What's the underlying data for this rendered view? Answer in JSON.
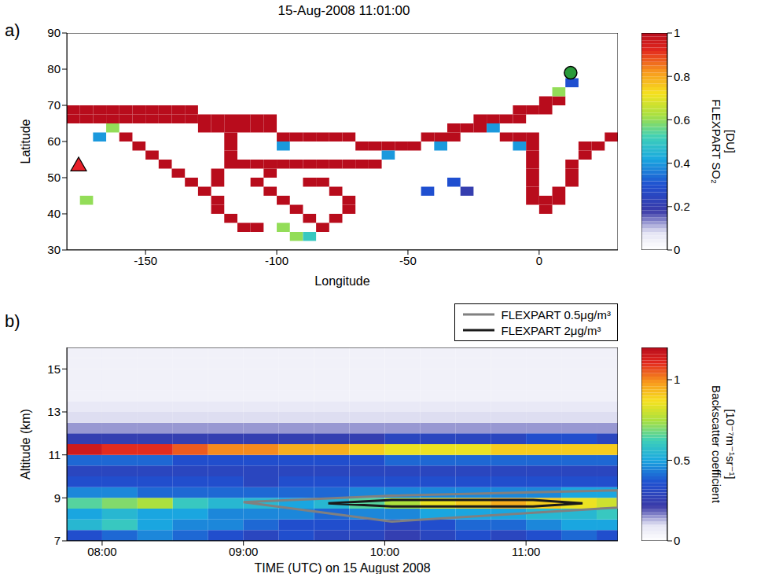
{
  "chart_data": [
    {
      "type": "heatmap",
      "title": "15-Aug-2008 11:01:00",
      "panel_label": "a)",
      "xlabel": "Longitude",
      "ylabel": "Latitude",
      "xlim": [
        -180,
        30
      ],
      "xticks": [
        -150,
        -100,
        -50,
        0
      ],
      "ylim": [
        30,
        90
      ],
      "yticks": [
        30,
        40,
        50,
        60,
        70,
        80,
        90
      ],
      "colorbar": {
        "label": "FLEXPART SO₂ [DU]",
        "range": [
          0,
          1
        ],
        "ticks": [
          0,
          0.2,
          0.4,
          0.6,
          0.8,
          1
        ]
      },
      "cell_size": [
        5,
        2.5
      ],
      "cells": [
        [
          -180,
          65,
          1
        ],
        [
          -175,
          65,
          1
        ],
        [
          -170,
          65,
          1
        ],
        [
          -165,
          65,
          1
        ],
        [
          -160,
          65,
          1
        ],
        [
          -155,
          65,
          1
        ],
        [
          -150,
          65,
          1
        ],
        [
          -145,
          65,
          1
        ],
        [
          -140,
          65,
          1
        ],
        [
          -135,
          65,
          1
        ],
        [
          -180,
          67.5,
          1
        ],
        [
          -175,
          67.5,
          1
        ],
        [
          -170,
          67.5,
          1
        ],
        [
          -165,
          67.5,
          1
        ],
        [
          -160,
          67.5,
          1
        ],
        [
          -155,
          67.5,
          1
        ],
        [
          -150,
          67.5,
          1
        ],
        [
          -145,
          67.5,
          1
        ],
        [
          -140,
          67.5,
          1
        ],
        [
          -135,
          67.5,
          1
        ],
        [
          -130,
          62.5,
          1
        ],
        [
          -125,
          62.5,
          1
        ],
        [
          -120,
          62.5,
          1
        ],
        [
          -115,
          62.5,
          1
        ],
        [
          -110,
          62.5,
          1
        ],
        [
          -105,
          62.5,
          1
        ],
        [
          -130,
          65,
          1
        ],
        [
          -125,
          65,
          1
        ],
        [
          -120,
          65,
          1
        ],
        [
          -115,
          65,
          1
        ],
        [
          -110,
          65,
          1
        ],
        [
          -105,
          65,
          1
        ],
        [
          -100,
          60,
          1
        ],
        [
          -95,
          60,
          1
        ],
        [
          -90,
          60,
          1
        ],
        [
          -85,
          60,
          1
        ],
        [
          -80,
          60,
          1
        ],
        [
          -75,
          60,
          1
        ],
        [
          -70,
          57.5,
          1
        ],
        [
          -65,
          57.5,
          1
        ],
        [
          -60,
          57.5,
          1
        ],
        [
          -55,
          57.5,
          1
        ],
        [
          -50,
          57.5,
          1
        ],
        [
          -45,
          60,
          1
        ],
        [
          -40,
          60,
          1
        ],
        [
          -35,
          60,
          1
        ],
        [
          -35,
          62.5,
          1
        ],
        [
          -30,
          62.5,
          1
        ],
        [
          -25,
          62.5,
          1
        ],
        [
          -25,
          65,
          1
        ],
        [
          -20,
          65,
          1
        ],
        [
          -15,
          65,
          1
        ],
        [
          -10,
          65,
          1
        ],
        [
          -10,
          67.5,
          1
        ],
        [
          -5,
          67.5,
          1
        ],
        [
          0,
          67.5,
          1
        ],
        [
          0,
          70,
          1
        ],
        [
          5,
          70,
          1
        ],
        [
          5,
          72.5,
          0.6
        ],
        [
          10,
          75,
          0.3
        ],
        [
          -120,
          52.5,
          1
        ],
        [
          -115,
          52.5,
          1
        ],
        [
          -110,
          52.5,
          1
        ],
        [
          -105,
          52.5,
          1
        ],
        [
          -100,
          52.5,
          1
        ],
        [
          -95,
          52.5,
          1
        ],
        [
          -90,
          52.5,
          1
        ],
        [
          -85,
          52.5,
          1
        ],
        [
          -80,
          52.5,
          1
        ],
        [
          -75,
          52.5,
          1
        ],
        [
          -70,
          52.5,
          1
        ],
        [
          -65,
          52.5,
          1
        ],
        [
          -15,
          60,
          1
        ],
        [
          -10,
          60,
          1
        ],
        [
          -5,
          60,
          1
        ],
        [
          -5,
          57.5,
          1
        ],
        [
          -5,
          55,
          1
        ],
        [
          -5,
          52.5,
          1
        ],
        [
          -5,
          50,
          1
        ],
        [
          -5,
          47.5,
          1
        ],
        [
          -5,
          45,
          1
        ],
        [
          -5,
          42.5,
          1
        ],
        [
          0,
          40,
          1
        ],
        [
          0,
          42.5,
          1
        ],
        [
          5,
          42.5,
          1
        ],
        [
          5,
          45,
          1
        ],
        [
          10,
          47.5,
          1
        ],
        [
          10,
          50,
          1
        ],
        [
          10,
          52.5,
          1
        ],
        [
          15,
          55,
          1
        ],
        [
          15,
          57.5,
          1
        ],
        [
          20,
          57.5,
          1
        ],
        [
          25,
          60,
          1
        ],
        [
          -160,
          60,
          1
        ],
        [
          -155,
          57.5,
          1
        ],
        [
          -150,
          55,
          1
        ],
        [
          -145,
          52.5,
          1
        ],
        [
          -140,
          50,
          1
        ],
        [
          -135,
          47.5,
          1
        ],
        [
          -130,
          45,
          1
        ],
        [
          -125,
          42.5,
          1
        ],
        [
          -125,
          40,
          1
        ],
        [
          -120,
          37.5,
          1
        ],
        [
          -115,
          35,
          1
        ],
        [
          -110,
          35,
          1
        ],
        [
          -165,
          62.5,
          0.6
        ],
        [
          -170,
          60,
          0.4
        ],
        [
          -120,
          60,
          1
        ],
        [
          -120,
          57.5,
          1
        ],
        [
          -120,
          55,
          1
        ],
        [
          -125,
          50,
          1
        ],
        [
          -125,
          47.5,
          1
        ],
        [
          -105,
          45,
          1
        ],
        [
          -100,
          42.5,
          1
        ],
        [
          -95,
          40,
          1
        ],
        [
          -90,
          37.5,
          1
        ],
        [
          -85,
          35,
          1
        ],
        [
          -80,
          37.5,
          1
        ],
        [
          -75,
          40,
          1
        ],
        [
          -75,
          42.5,
          1
        ],
        [
          -80,
          45,
          1
        ],
        [
          -85,
          47.5,
          1
        ],
        [
          -90,
          47.5,
          1
        ],
        [
          -110,
          47.5,
          1
        ],
        [
          -105,
          50,
          1
        ],
        [
          -100,
          35,
          0.6
        ],
        [
          -95,
          32.5,
          0.6
        ],
        [
          -90,
          32.5,
          0.5
        ],
        [
          -100,
          57.5,
          0.4
        ],
        [
          -60,
          55,
          0.4
        ],
        [
          -40,
          57.5,
          0.4
        ],
        [
          -20,
          62.5,
          0.4
        ],
        [
          -35,
          47.5,
          0.3
        ],
        [
          -45,
          45,
          0.3
        ],
        [
          -30,
          45,
          0.2
        ],
        [
          -10,
          57.5,
          0.4
        ],
        [
          -175,
          42.5,
          0.6
        ]
      ],
      "markers": [
        {
          "x": -175.5,
          "y": 53.5,
          "marker": "triangle",
          "color": "#e8202a"
        },
        {
          "x": 12,
          "y": 79,
          "marker": "circle",
          "color": "#2a9a3a"
        }
      ]
    },
    {
      "type": "heatmap",
      "panel_label": "b)",
      "xlabel": "TIME (UTC) on 15 August 2008",
      "ylabel": "Altitude (km)",
      "xlim": [
        7.75,
        11.65
      ],
      "xticks": [
        {
          "value": 8,
          "label": "08:00"
        },
        {
          "value": 9,
          "label": "09:00"
        },
        {
          "value": 10,
          "label": "10:00"
        },
        {
          "value": 11,
          "label": "11:00"
        }
      ],
      "ylim": [
        7,
        16
      ],
      "yticks": [
        7,
        9,
        11,
        13,
        15
      ],
      "colorbar": {
        "label": "Backscatter coefficient [10⁻⁷m⁻¹sr⁻¹]",
        "range": [
          0,
          1.2
        ],
        "ticks": [
          0,
          0.5,
          1
        ]
      },
      "x_bins": [
        7.75,
        8,
        8.25,
        8.5,
        8.75,
        9,
        9.25,
        9.5,
        9.75,
        10,
        10.25,
        10.5,
        10.75,
        11,
        11.25,
        11.5,
        11.75
      ],
      "y_bins": [
        7,
        7.5,
        8,
        8.5,
        9,
        9.5,
        10,
        10.5,
        11,
        11.5,
        12,
        12.5,
        13,
        13.5,
        14,
        14.5,
        15,
        15.5,
        16
      ],
      "z": [
        [
          0.35,
          0.4,
          0.45,
          0.4,
          0.35,
          0.3,
          0.35,
          0.3,
          0.3,
          0.25,
          0.3,
          0.35,
          0.3,
          0.35,
          0.4,
          0.35
        ],
        [
          0.55,
          0.6,
          0.5,
          0.45,
          0.45,
          0.4,
          0.35,
          0.35,
          0.35,
          0.3,
          0.35,
          0.4,
          0.4,
          0.45,
          0.5,
          0.5
        ],
        [
          0.5,
          0.55,
          0.5,
          0.5,
          0.45,
          0.45,
          0.45,
          0.4,
          0.45,
          0.45,
          0.5,
          0.5,
          0.5,
          0.55,
          0.55,
          0.6
        ],
        [
          0.65,
          0.7,
          0.75,
          0.6,
          0.55,
          0.55,
          0.5,
          0.55,
          0.65,
          0.75,
          0.85,
          0.9,
          0.95,
          0.9,
          0.85,
          0.8
        ],
        [
          0.45,
          0.45,
          0.4,
          0.4,
          0.4,
          0.4,
          0.4,
          0.4,
          0.45,
          0.45,
          0.45,
          0.45,
          0.45,
          0.45,
          0.5,
          0.5
        ],
        [
          0.35,
          0.35,
          0.35,
          0.35,
          0.35,
          0.3,
          0.35,
          0.35,
          0.35,
          0.35,
          0.35,
          0.35,
          0.35,
          0.35,
          0.35,
          0.35
        ],
        [
          0.3,
          0.3,
          0.3,
          0.3,
          0.3,
          0.3,
          0.3,
          0.3,
          0.3,
          0.3,
          0.3,
          0.3,
          0.3,
          0.3,
          0.3,
          0.3
        ],
        [
          0.4,
          0.4,
          0.4,
          0.35,
          0.35,
          0.35,
          0.35,
          0.35,
          0.35,
          0.4,
          0.4,
          0.4,
          0.4,
          0.4,
          0.4,
          0.4
        ],
        [
          1.15,
          1.1,
          1.1,
          1.05,
          1,
          1,
          0.95,
          0.95,
          0.9,
          0.85,
          0.85,
          0.85,
          0.9,
          0.9,
          0.9,
          0.9
        ],
        [
          0.25,
          0.25,
          0.25,
          0.25,
          0.25,
          0.25,
          0.25,
          0.25,
          0.25,
          0.3,
          0.3,
          0.3,
          0.3,
          0.35,
          0.35,
          0.3
        ],
        [
          0.15,
          0.15,
          0.15,
          0.15,
          0.15,
          0.15,
          0.15,
          0.15,
          0.15,
          0.15,
          0.15,
          0.15,
          0.15,
          0.15,
          0.15,
          0.15
        ],
        [
          0.1,
          0.1,
          0.1,
          0.1,
          0.1,
          0.1,
          0.1,
          0.1,
          0.1,
          0.1,
          0.1,
          0.1,
          0.1,
          0.1,
          0.1,
          0.1
        ],
        [
          0.08,
          0.08,
          0.08,
          0.08,
          0.08,
          0.08,
          0.08,
          0.08,
          0.08,
          0.08,
          0.08,
          0.08,
          0.08,
          0.08,
          0.08,
          0.08
        ],
        [
          0.05,
          0.05,
          0.05,
          0.05,
          0.05,
          0.05,
          0.05,
          0.05,
          0.05,
          0.05,
          0.05,
          0.05,
          0.05,
          0.05,
          0.05,
          0.05
        ],
        [
          0.05,
          0.05,
          0.05,
          0.05,
          0.05,
          0.05,
          0.05,
          0.05,
          0.05,
          0.05,
          0.05,
          0.05,
          0.05,
          0.05,
          0.05,
          0.05
        ],
        [
          0.05,
          0.05,
          0.05,
          0.05,
          0.05,
          0.05,
          0.05,
          0.05,
          0.05,
          0.05,
          0.05,
          0.05,
          0.05,
          0.05,
          0.05,
          0.05
        ],
        [
          0.05,
          0.05,
          0.05,
          0.05,
          0.05,
          0.05,
          0.05,
          0.05,
          0.05,
          0.05,
          0.05,
          0.05,
          0.05,
          0.05,
          0.05,
          0.05
        ],
        [
          0.05,
          0.05,
          0.05,
          0.05,
          0.05,
          0.05,
          0.05,
          0.05,
          0.05,
          0.05,
          0.05,
          0.05,
          0.05,
          0.05,
          0.05,
          0.05
        ]
      ],
      "series": [
        {
          "name": "FLEXPART 0.5μg/m³",
          "type": "line",
          "color": "#808080",
          "x": [
            9.0,
            10.05,
            11.65,
            11.65,
            10.05,
            9.0
          ],
          "values": [
            8.8,
            9.1,
            9.35,
            8.55,
            7.9,
            8.8
          ]
        },
        {
          "name": "FLEXPART 2μg/m³",
          "type": "line",
          "color": "#1a1a1a",
          "x": [
            9.6,
            10.05,
            11.05,
            11.4,
            11.05,
            10.05,
            9.6
          ],
          "values": [
            8.75,
            8.9,
            8.9,
            8.75,
            8.6,
            8.6,
            8.75
          ]
        }
      ],
      "legend": "top"
    }
  ]
}
